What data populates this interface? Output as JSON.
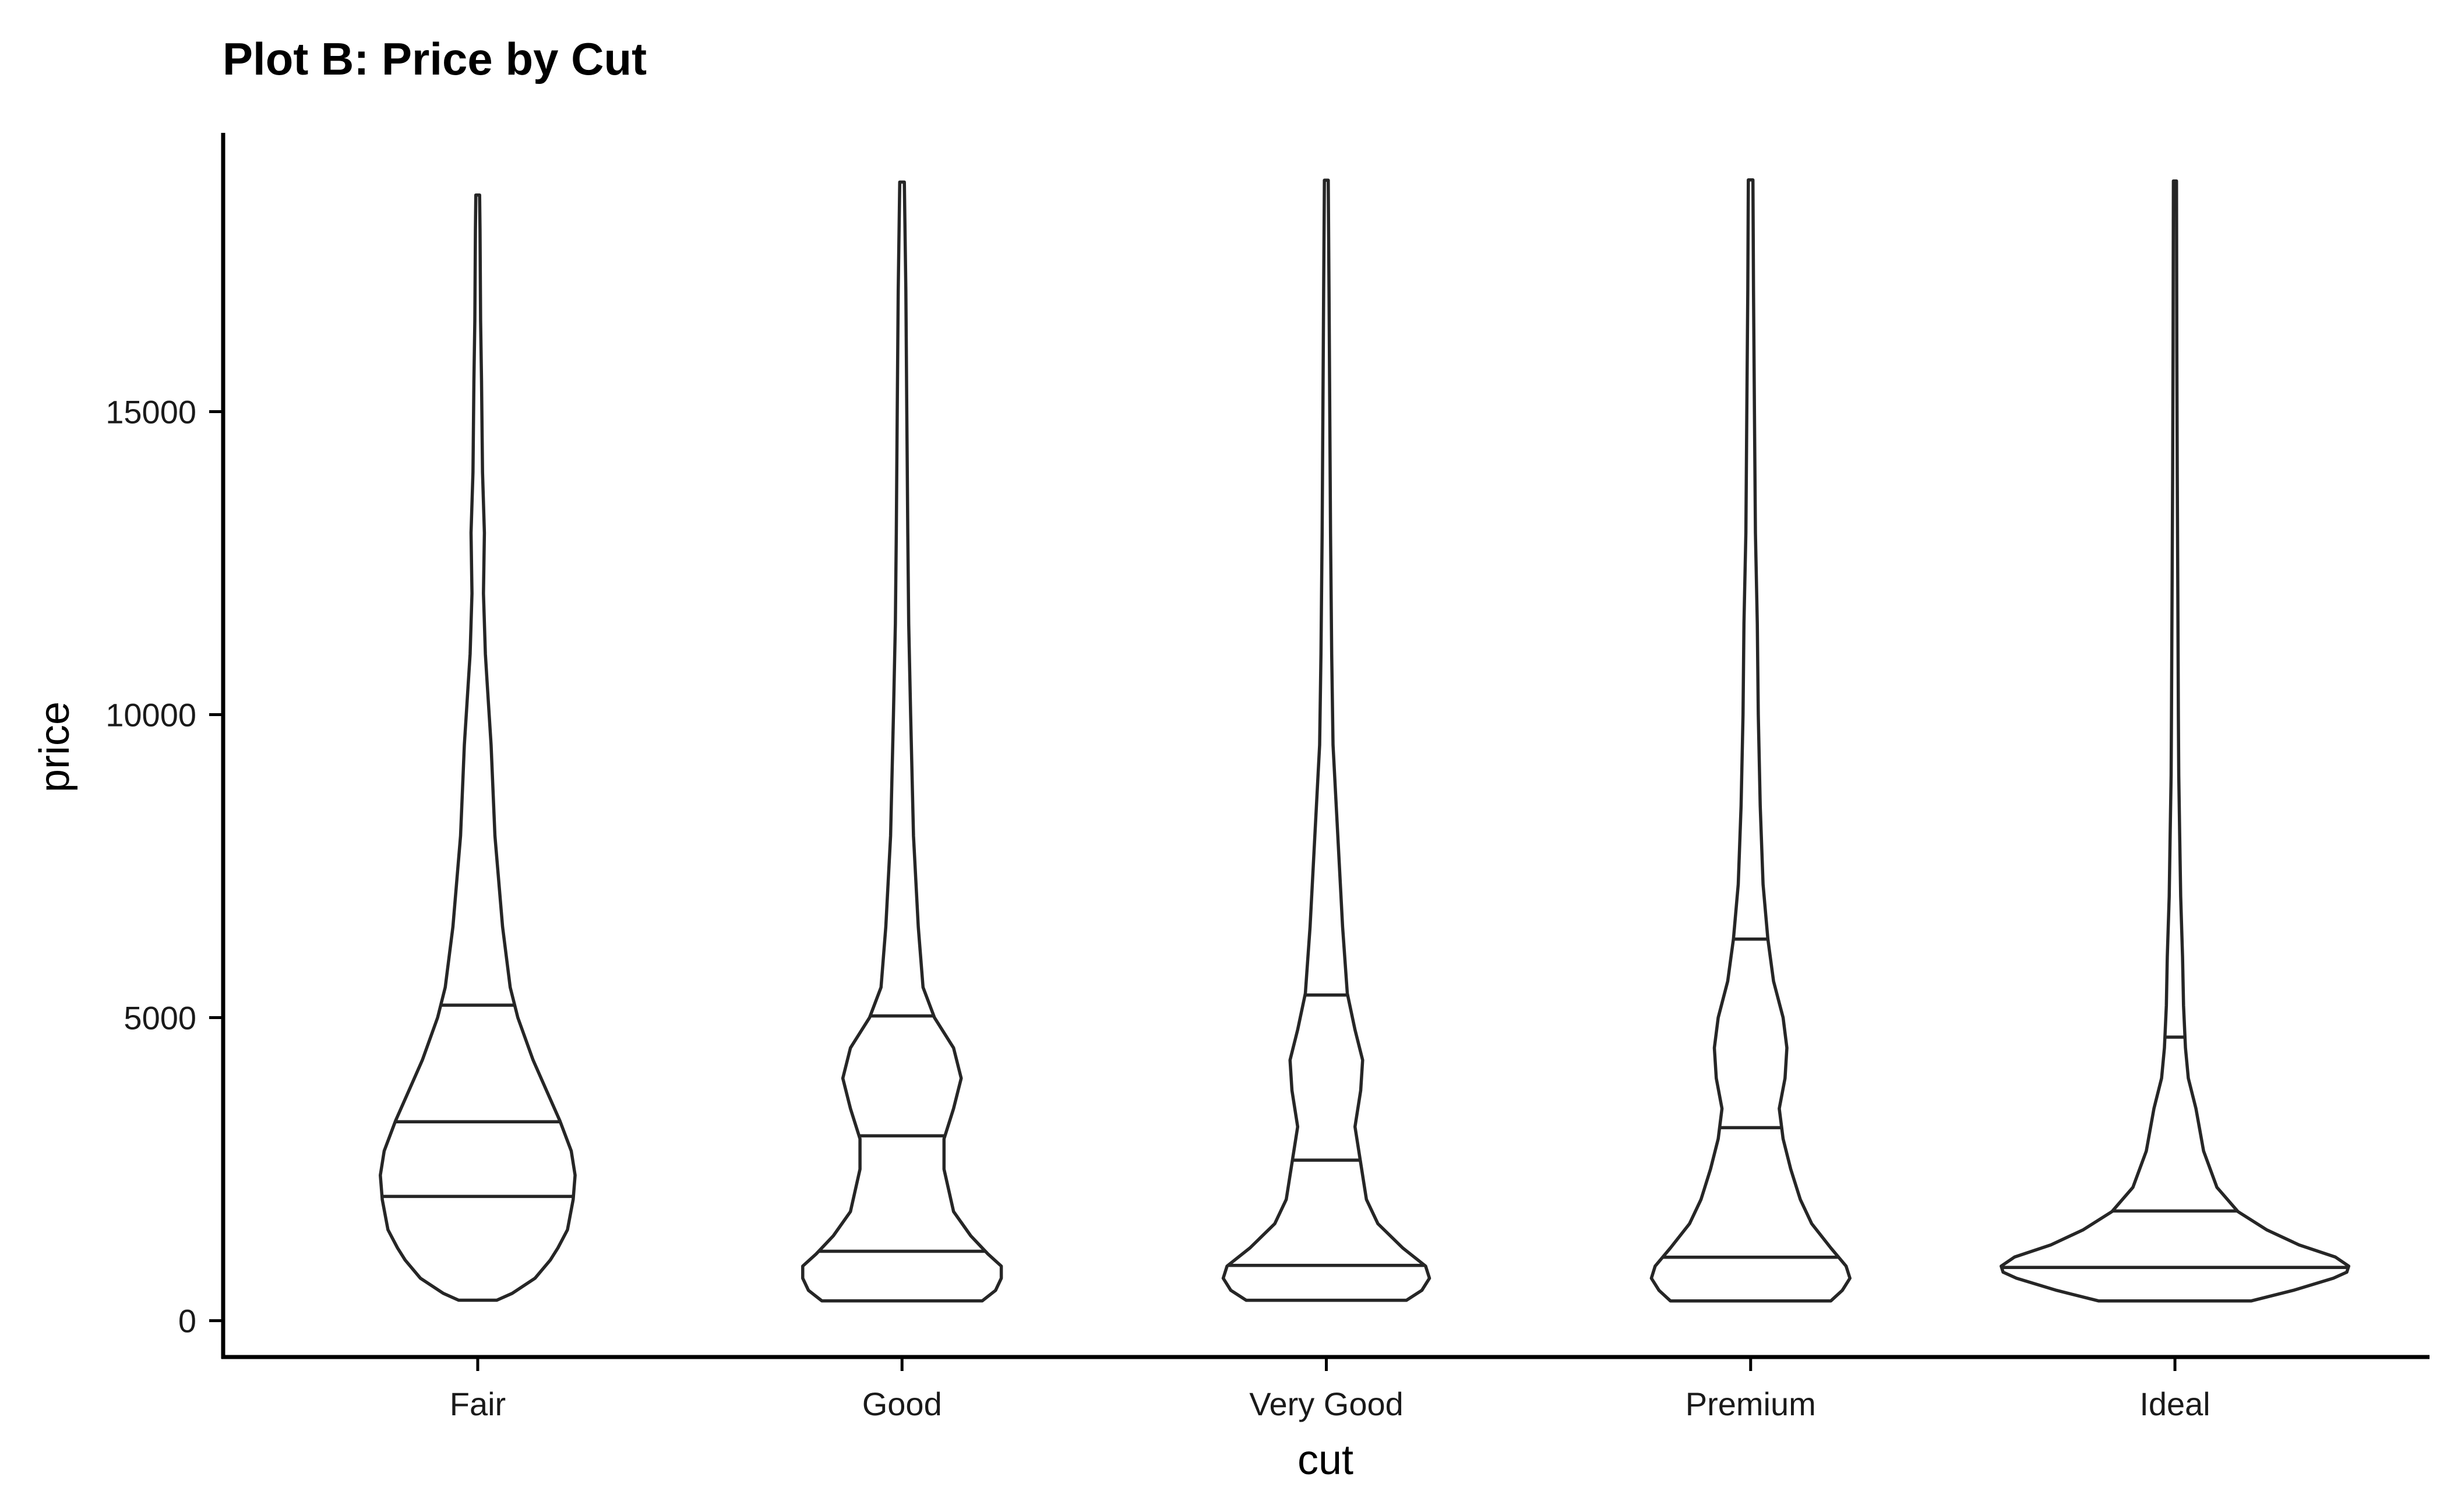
{
  "chart_data": {
    "type": "violin",
    "title": "Plot B: Price by Cut",
    "xlabel": "cut",
    "ylabel": "price",
    "categories": [
      "Fair",
      "Good",
      "Very Good",
      "Premium",
      "Ideal"
    ],
    "ylim": [
      -600,
      19600
    ],
    "yticks": [
      0,
      5000,
      10000,
      15000
    ],
    "ytick_labels": [
      "0",
      "5000",
      "10000",
      "15000"
    ],
    "grid": false,
    "legend": "none",
    "line_color": "#262626",
    "violins": [
      {
        "category": "Fair",
        "quantiles": [
          2050,
          3282,
          5206
        ],
        "profile": [
          [
            337,
            0.1
          ],
          [
            450,
            0.18
          ],
          [
            700,
            0.3
          ],
          [
            1000,
            0.38
          ],
          [
            1200,
            0.42
          ],
          [
            1500,
            0.47
          ],
          [
            2000,
            0.5
          ],
          [
            2400,
            0.51
          ],
          [
            2800,
            0.49
          ],
          [
            3300,
            0.43
          ],
          [
            3800,
            0.36
          ],
          [
            4300,
            0.29
          ],
          [
            5000,
            0.21
          ],
          [
            5500,
            0.17
          ],
          [
            6500,
            0.13
          ],
          [
            8000,
            0.09
          ],
          [
            9500,
            0.07
          ],
          [
            10500,
            0.05
          ],
          [
            11000,
            0.04
          ],
          [
            12000,
            0.03
          ],
          [
            13000,
            0.035
          ],
          [
            14000,
            0.025
          ],
          [
            15500,
            0.02
          ],
          [
            16500,
            0.015
          ],
          [
            18000,
            0.012
          ],
          [
            18574,
            0.01
          ]
        ]
      },
      {
        "category": "Good",
        "quantiles": [
          1145,
          3050,
          5028
        ],
        "profile": [
          [
            327,
            0.42
          ],
          [
            500,
            0.49
          ],
          [
            700,
            0.52
          ],
          [
            900,
            0.52
          ],
          [
            1100,
            0.45
          ],
          [
            1400,
            0.36
          ],
          [
            1800,
            0.27
          ],
          [
            2500,
            0.22
          ],
          [
            3000,
            0.22
          ],
          [
            3500,
            0.27
          ],
          [
            4000,
            0.31
          ],
          [
            4500,
            0.27
          ],
          [
            5000,
            0.17
          ],
          [
            5500,
            0.11
          ],
          [
            6500,
            0.085
          ],
          [
            8000,
            0.06
          ],
          [
            10000,
            0.045
          ],
          [
            11500,
            0.035
          ],
          [
            13000,
            0.03
          ],
          [
            15000,
            0.025
          ],
          [
            17000,
            0.02
          ],
          [
            18788,
            0.012
          ]
        ]
      },
      {
        "category": "Very Good",
        "quantiles": [
          912,
          2648,
          5373
        ],
        "profile": [
          [
            336,
            0.42
          ],
          [
            500,
            0.5
          ],
          [
            700,
            0.54
          ],
          [
            900,
            0.52
          ],
          [
            1200,
            0.4
          ],
          [
            1600,
            0.27
          ],
          [
            2000,
            0.21
          ],
          [
            2600,
            0.18
          ],
          [
            3200,
            0.15
          ],
          [
            3800,
            0.18
          ],
          [
            4300,
            0.19
          ],
          [
            4800,
            0.15
          ],
          [
            5400,
            0.11
          ],
          [
            6500,
            0.085
          ],
          [
            8000,
            0.06
          ],
          [
            9500,
            0.035
          ],
          [
            11000,
            0.028
          ],
          [
            13000,
            0.022
          ],
          [
            15000,
            0.018
          ],
          [
            17000,
            0.014
          ],
          [
            18818,
            0.01
          ]
        ]
      },
      {
        "category": "Premium",
        "quantiles": [
          1046,
          3185,
          6296
        ],
        "profile": [
          [
            326,
            0.42
          ],
          [
            500,
            0.48
          ],
          [
            700,
            0.52
          ],
          [
            900,
            0.5
          ],
          [
            1200,
            0.42
          ],
          [
            1600,
            0.32
          ],
          [
            2000,
            0.26
          ],
          [
            2500,
            0.21
          ],
          [
            3000,
            0.17
          ],
          [
            3500,
            0.15
          ],
          [
            4000,
            0.18
          ],
          [
            4500,
            0.19
          ],
          [
            5000,
            0.17
          ],
          [
            5600,
            0.12
          ],
          [
            6300,
            0.09
          ],
          [
            7200,
            0.065
          ],
          [
            8500,
            0.05
          ],
          [
            10000,
            0.04
          ],
          [
            11500,
            0.035
          ],
          [
            13000,
            0.025
          ],
          [
            15000,
            0.02
          ],
          [
            17000,
            0.015
          ],
          [
            18823,
            0.012
          ]
        ]
      },
      {
        "category": "Ideal",
        "quantiles": [
          878,
          1810,
          4678
        ],
        "profile": [
          [
            326,
            0.4
          ],
          [
            500,
            0.62
          ],
          [
            700,
            0.83
          ],
          [
            800,
            0.9
          ],
          [
            900,
            0.91
          ],
          [
            1050,
            0.84
          ],
          [
            1250,
            0.65
          ],
          [
            1500,
            0.48
          ],
          [
            1800,
            0.33
          ],
          [
            2200,
            0.22
          ],
          [
            2800,
            0.15
          ],
          [
            3500,
            0.11
          ],
          [
            4000,
            0.07
          ],
          [
            4500,
            0.055
          ],
          [
            5200,
            0.045
          ],
          [
            6000,
            0.04
          ],
          [
            7000,
            0.03
          ],
          [
            8000,
            0.025
          ],
          [
            9000,
            0.02
          ],
          [
            10000,
            0.018
          ],
          [
            12000,
            0.015
          ],
          [
            14000,
            0.012
          ],
          [
            16000,
            0.01
          ],
          [
            18806,
            0.008
          ]
        ]
      }
    ]
  }
}
